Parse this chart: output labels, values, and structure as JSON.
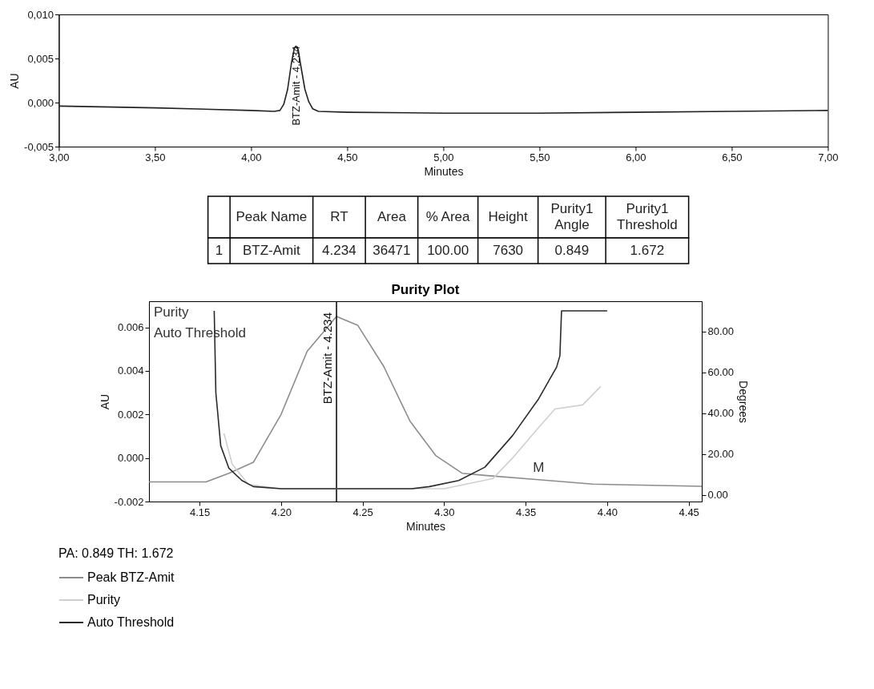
{
  "chart_data": [
    {
      "type": "line",
      "xlabel": "Minutes",
      "ylabel": "AU",
      "x": [
        3.0,
        3.5,
        4.0,
        4.12,
        4.15,
        4.17,
        4.19,
        4.21,
        4.225,
        4.234,
        4.245,
        4.26,
        4.28,
        4.3,
        4.32,
        4.35,
        4.5,
        5.0,
        5.5,
        6.0,
        6.5,
        7.0
      ],
      "series": [
        {
          "color": "#222222",
          "values": [
            -0.0004,
            -0.0006,
            -0.0009,
            -0.001,
            -0.0009,
            -0.0002,
            0.0015,
            0.0045,
            0.0062,
            0.0064,
            0.006,
            0.004,
            0.0015,
            0.0001,
            -0.0007,
            -0.001,
            -0.0011,
            -0.0012,
            -0.0012,
            -0.0011,
            -0.001,
            -0.0009
          ]
        }
      ],
      "xlim": [
        3.0,
        7.0
      ],
      "xticks": [
        {
          "value": 3.0,
          "label": "3,00"
        },
        {
          "value": 3.5,
          "label": "3,50"
        },
        {
          "value": 4.0,
          "label": "4,00"
        },
        {
          "value": 4.5,
          "label": "4,50"
        },
        {
          "value": 5.0,
          "label": "5,00"
        },
        {
          "value": 5.5,
          "label": "5,50"
        },
        {
          "value": 6.0,
          "label": "6,00"
        },
        {
          "value": 6.5,
          "label": "6,50"
        },
        {
          "value": 7.0,
          "label": "7,00"
        }
      ],
      "ylim": [
        -0.005,
        0.01
      ],
      "yticks": [
        {
          "value": -0.005,
          "label": "-0,005"
        },
        {
          "value": 0,
          "label": "0,000"
        },
        {
          "value": 0.005,
          "label": "0,005"
        },
        {
          "value": 0.01,
          "label": "0,010"
        }
      ],
      "annotations": [
        {
          "text": "BTZ-Amit - 4,234",
          "x": 4.234,
          "y": 0.0064
        }
      ]
    },
    {
      "type": "other",
      "categories": [
        null,
        "Peak Name",
        "RT",
        "Area",
        "% Area",
        "Height",
        "Purity1 Angle",
        "Purity1 Threshold"
      ],
      "value_labels": [
        "1",
        "BTZ-Amit",
        "4.234",
        "36471",
        "100.00",
        "7630",
        "0.849",
        "1.672"
      ]
    },
    {
      "type": "line",
      "title": "Purity Plot",
      "xlabel": "Minutes",
      "ylabel": "AU",
      "y2label": "Degrees",
      "legend": "bottom",
      "legend_title": "PA: 0.849  TH: 1.672",
      "series": [
        {
          "name": "Peak BTZ-Amit",
          "color": "#8c8c8c",
          "x": [
            4.119,
            4.154,
            4.168,
            4.183,
            4.2,
            4.216,
            4.234,
            4.247,
            4.263,
            4.279,
            4.295,
            4.311,
            4.325,
            4.358,
            4.391,
            4.458
          ],
          "values": [
            -0.0011,
            -0.0011,
            -0.0007,
            -0.0002,
            0.002,
            0.0049,
            0.0065,
            0.0061,
            0.0042,
            0.0017,
            0.0001,
            -0.0007,
            -0.0008,
            -0.001,
            -0.0012,
            -0.0013
          ]
        },
        {
          "name": "Purity",
          "color": "#cfcfcf",
          "axis": "y2",
          "x": [
            4.165,
            4.17,
            4.18,
            4.2,
            4.3,
            4.33,
            4.342,
            4.358,
            4.368,
            4.385,
            4.396
          ],
          "values": [
            30,
            15,
            5,
            3,
            3,
            8,
            18,
            33,
            42,
            44,
            53
          ]
        },
        {
          "name": "Auto Threshold",
          "color": "#2b2b2b",
          "axis": "y2",
          "x": [
            4.159,
            4.16,
            4.163,
            4.168,
            4.176,
            4.183,
            4.2,
            4.28,
            4.291,
            4.309,
            4.325,
            4.342,
            4.358,
            4.369,
            4.371,
            4.372,
            4.4
          ],
          "values": [
            90,
            50,
            24,
            13,
            7,
            4,
            3,
            3,
            4,
            7,
            13.5,
            29,
            47,
            62.5,
            68,
            90,
            90
          ]
        }
      ],
      "xlim": [
        4.119,
        4.458
      ],
      "xticks": [
        4.15,
        {
          "value": 4.2,
          "label": "4.20"
        },
        4.25,
        {
          "value": 4.3,
          "label": "4.30"
        },
        4.35,
        {
          "value": 4.4,
          "label": "4.40"
        },
        4.45
      ],
      "ylim": [
        -0.002,
        0.0072
      ],
      "yticks": [
        {
          "value": -0.002,
          "label": "-0.002"
        },
        {
          "value": 0,
          "label": "0.000"
        },
        {
          "value": 0.002,
          "label": "0.002"
        },
        {
          "value": 0.004,
          "label": "0.004"
        },
        {
          "value": 0.006,
          "label": "0.006"
        }
      ],
      "y2lim": [
        -3.3,
        94.7
      ],
      "y2ticks": [
        {
          "value": 0,
          "label": "0.00"
        },
        {
          "value": 20,
          "label": "20.00"
        },
        {
          "value": 40,
          "label": "40.00"
        },
        {
          "value": 60,
          "label": "60.00"
        },
        {
          "value": 80,
          "label": "80.00"
        }
      ],
      "ref_lines": [
        {
          "axis": "x",
          "value": 4.234,
          "label": "BTZ-Amit - 4.234",
          "color": "#000000"
        }
      ],
      "annotations": [
        "Purity",
        "Auto Threshold",
        {
          "text": "M",
          "x": 4.358,
          "y": -0.001
        }
      ]
    }
  ]
}
